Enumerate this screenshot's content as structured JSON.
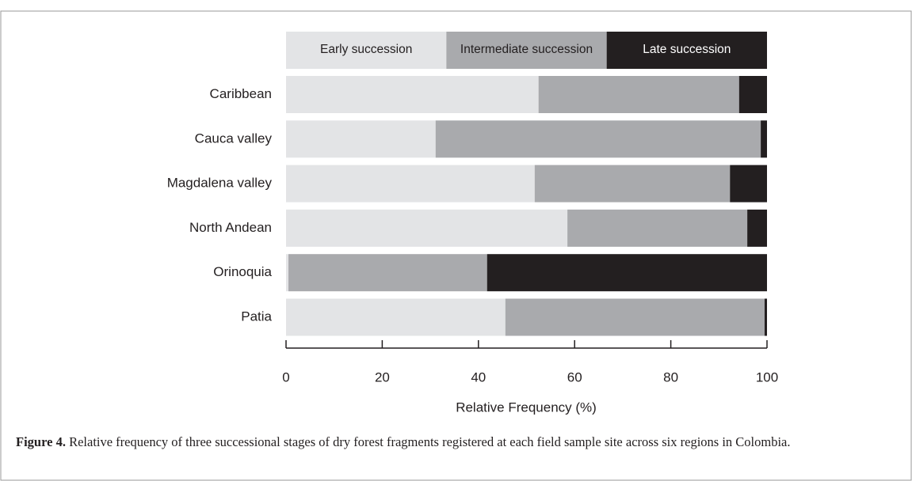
{
  "chart_data": {
    "type": "stacked_barh",
    "x_label": "Relative Frequency (%)",
    "categories": [
      "Caribbean",
      "Cauca valley",
      "Magdalena valley",
      "North Andean",
      "Orinoquia",
      "Patia"
    ],
    "series": [
      {
        "name": "Early succession",
        "color": "#e3e4e6",
        "values": [
          52.5,
          31.1,
          51.7,
          58.5,
          0.5,
          45.6
        ]
      },
      {
        "name": "Intermediate succession",
        "color": "#a9aaad",
        "values": [
          41.7,
          67.6,
          40.6,
          37.4,
          41.3,
          53.9
        ]
      },
      {
        "name": "Late succession",
        "color": "#231f20",
        "values": [
          5.8,
          1.3,
          7.7,
          4.1,
          58.2,
          0.5
        ]
      }
    ],
    "xlim": [
      0,
      100
    ],
    "xticks": [
      0,
      20,
      40,
      60,
      80,
      100
    ],
    "legend": "top",
    "caption": {
      "label": "Figure 4.",
      "text": "Relative frequency of three successional stages of dry forest fragments registered at each field sample site across six regions in Colombia."
    }
  }
}
